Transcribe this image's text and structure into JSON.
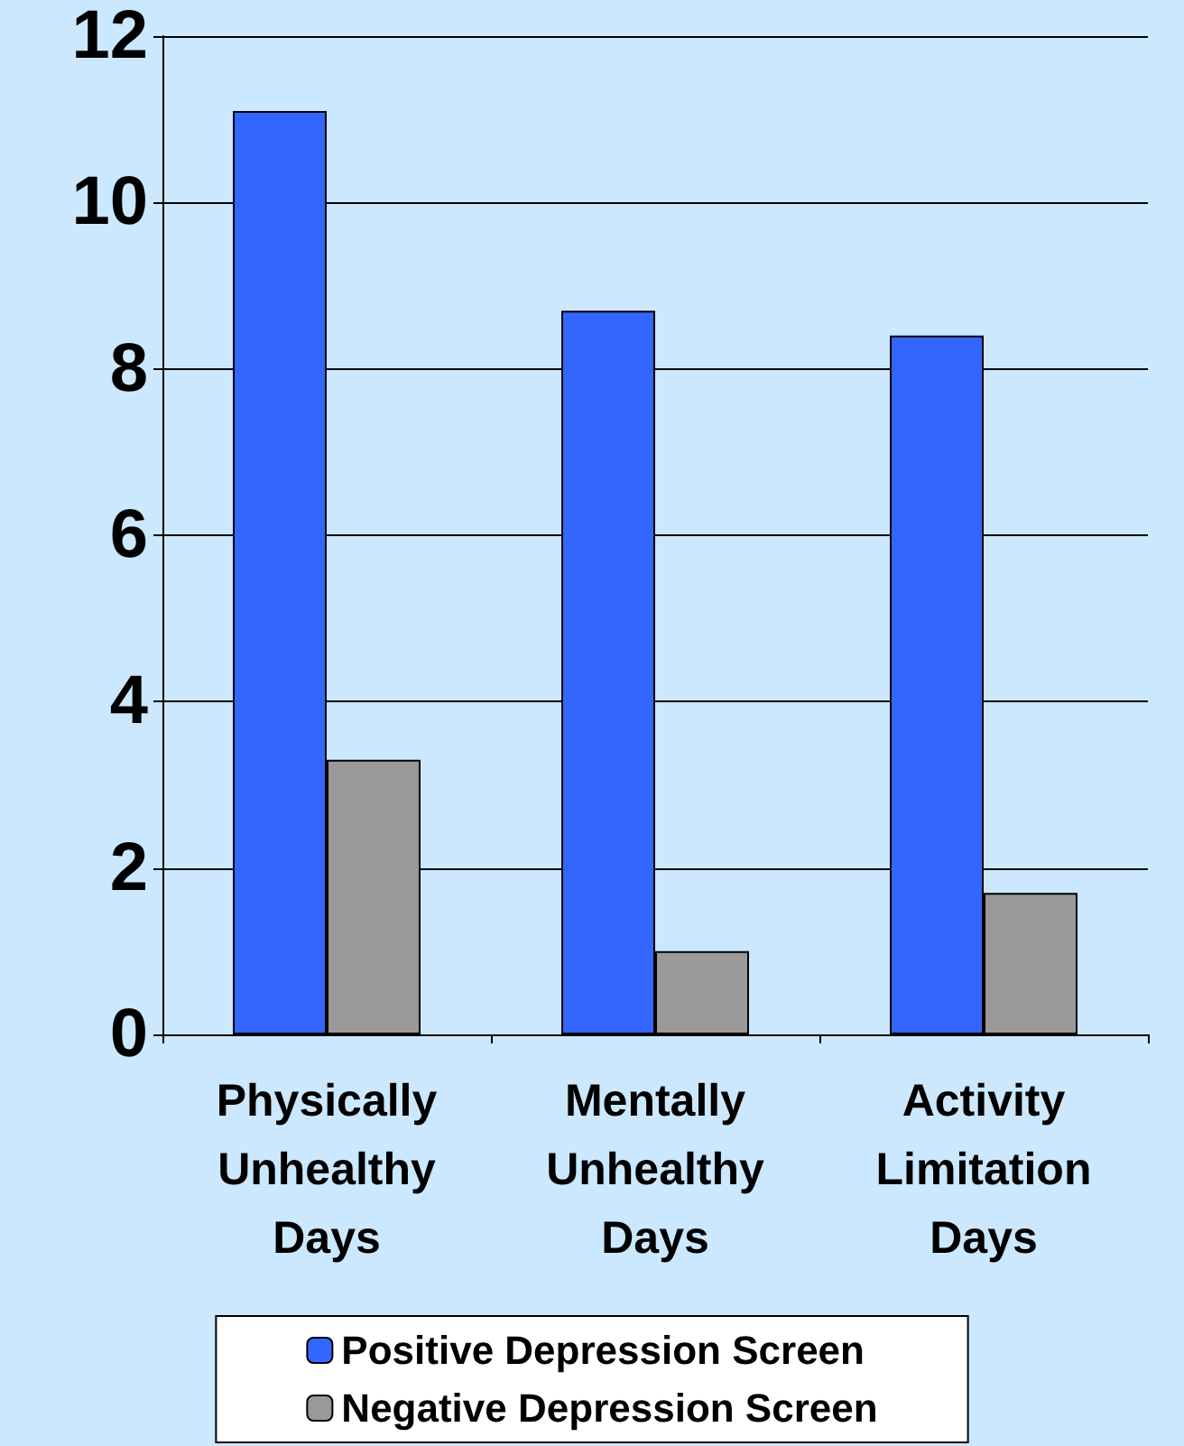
{
  "chart_data": {
    "type": "bar",
    "categories": [
      "Physically\nUnhealthy\nDays",
      "Mentally\nUnhealthy\nDays",
      "Activity\nLimitation\nDays"
    ],
    "series": [
      {
        "name": "Positive Depression Screen",
        "color": "#3366ff",
        "values": [
          11.1,
          8.7,
          8.4
        ]
      },
      {
        "name": "Negative Depression Screen",
        "color": "#999999",
        "values": [
          3.3,
          1.0,
          1.7
        ]
      }
    ],
    "ylim": [
      0,
      12
    ],
    "yticks": [
      0,
      2,
      4,
      6,
      8,
      10,
      12
    ],
    "grid": "y",
    "legend": "bottom"
  }
}
